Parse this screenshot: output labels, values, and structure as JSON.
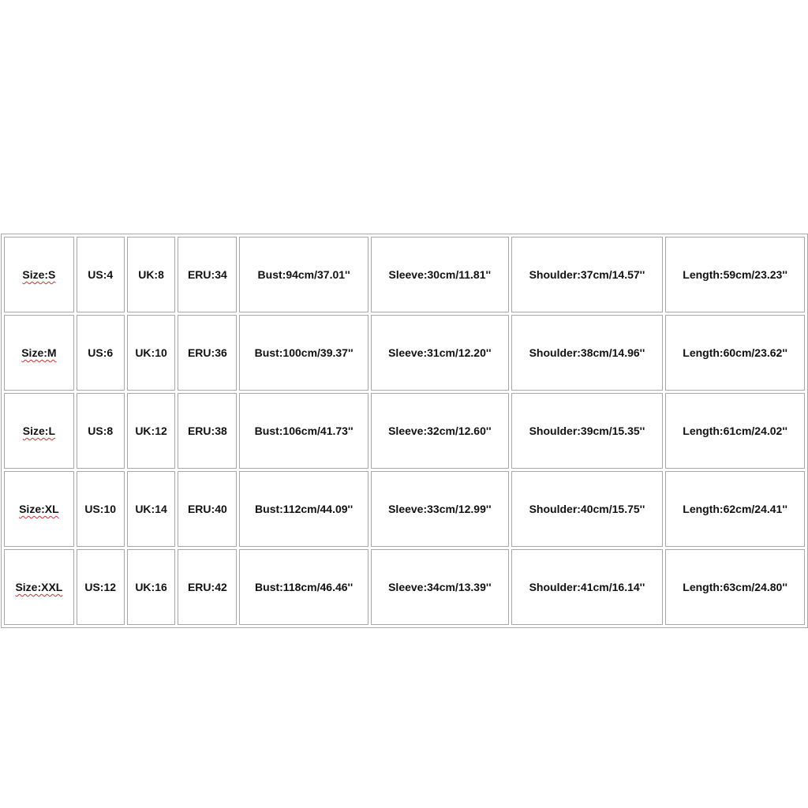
{
  "table": {
    "rows": [
      [
        "Size:S",
        "US:4",
        "UK:8",
        "ERU:34",
        "Bust:94cm/37.01''",
        "Sleeve:30cm/11.81''",
        "Shoulder:37cm/14.57''",
        "Length:59cm/23.23''"
      ],
      [
        "Size:M",
        "US:6",
        "UK:10",
        "ERU:36",
        "Bust:100cm/39.37''",
        "Sleeve:31cm/12.20''",
        "Shoulder:38cm/14.96''",
        "Length:60cm/23.62''"
      ],
      [
        "Size:L",
        "US:8",
        "UK:12",
        "ERU:38",
        "Bust:106cm/41.73''",
        "Sleeve:32cm/12.60''",
        "Shoulder:39cm/15.35''",
        "Length:61cm/24.02''"
      ],
      [
        "Size:XL",
        "US:10",
        "UK:14",
        "ERU:40",
        "Bust:112cm/44.09''",
        "Sleeve:33cm/12.99''",
        "Shoulder:40cm/15.75''",
        "Length:62cm/24.41''"
      ],
      [
        "Size:XXL",
        "US:12",
        "UK:16",
        "ERU:42",
        "Bust:118cm/46.46''",
        "Sleeve:34cm/13.39''",
        "Shoulder:41cm/16.14''",
        "Length:63cm/24.80''"
      ]
    ]
  }
}
